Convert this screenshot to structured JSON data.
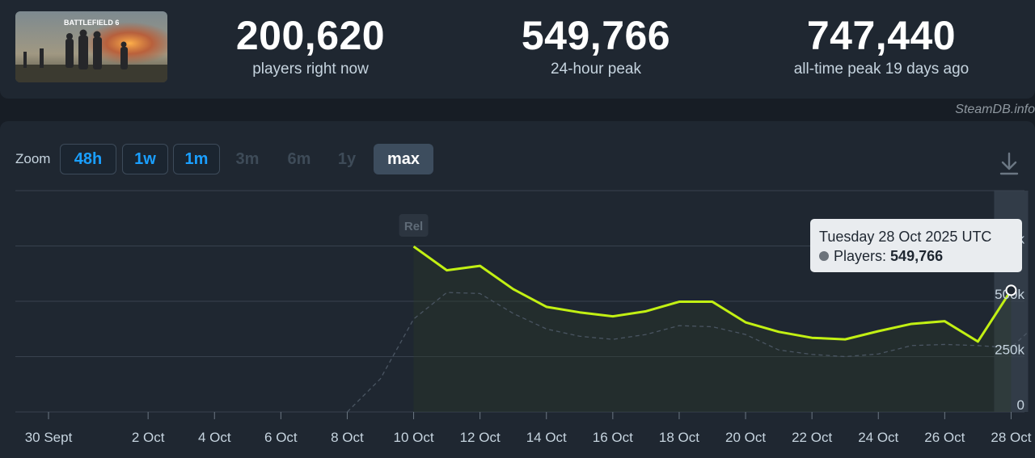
{
  "header": {
    "game_title": "BATTLEFIELD 6",
    "stats": [
      {
        "value": "200,620",
        "label": "players right now"
      },
      {
        "value": "549,766",
        "label": "24-hour peak"
      },
      {
        "value": "747,440",
        "label": "all-time peak 19 days ago"
      }
    ]
  },
  "watermark": "SteamDB.info",
  "zoom": {
    "label": "Zoom",
    "buttons": [
      {
        "label": "48h",
        "state": "active"
      },
      {
        "label": "1w",
        "state": "active"
      },
      {
        "label": "1m",
        "state": "active"
      },
      {
        "label": "3m",
        "state": "disabled"
      },
      {
        "label": "6m",
        "state": "disabled"
      },
      {
        "label": "1y",
        "state": "disabled"
      },
      {
        "label": "max",
        "state": "selected"
      }
    ]
  },
  "tooltip": {
    "date": "Tuesday 28 Oct 2025 UTC",
    "series_label": "Players:",
    "value": "549,766"
  },
  "colors": {
    "line": "#c2f013",
    "secondary": "#4a5562",
    "grid": "#38424e",
    "accent": "#1a9fff",
    "background": "#171d25"
  },
  "chart_data": {
    "type": "line",
    "annotation": "Rel",
    "x_tick_labels": [
      "30 Sept",
      "2 Oct",
      "4 Oct",
      "6 Oct",
      "8 Oct",
      "10 Oct",
      "12 Oct",
      "14 Oct",
      "16 Oct",
      "18 Oct",
      "20 Oct",
      "22 Oct",
      "24 Oct",
      "26 Oct",
      "28 Oct"
    ],
    "y_tick_labels": [
      "0",
      "250k",
      "500k",
      "k"
    ],
    "ylim": [
      0,
      1000000
    ],
    "series": [
      {
        "name": "Players",
        "x": [
          "10 Oct",
          "11 Oct",
          "12 Oct",
          "13 Oct",
          "14 Oct",
          "15 Oct",
          "16 Oct",
          "17 Oct",
          "18 Oct",
          "19 Oct",
          "20 Oct",
          "21 Oct",
          "22 Oct",
          "23 Oct",
          "24 Oct",
          "25 Oct",
          "26 Oct",
          "27 Oct",
          "28 Oct"
        ],
        "values": [
          747440,
          640000,
          660000,
          555000,
          475000,
          450000,
          432000,
          455000,
          498000,
          498000,
          405000,
          362000,
          335000,
          328000,
          365000,
          398000,
          410000,
          318000,
          549766
        ]
      },
      {
        "name": "",
        "x": [
          "8 Oct",
          "9 Oct",
          "10 Oct",
          "11 Oct",
          "12 Oct",
          "13 Oct",
          "14 Oct",
          "15 Oct",
          "16 Oct",
          "17 Oct",
          "18 Oct",
          "19 Oct",
          "20 Oct",
          "21 Oct",
          "22 Oct",
          "23 Oct",
          "24 Oct",
          "25 Oct",
          "26 Oct",
          "27 Oct",
          "28 Oct",
          "28.5 Oct"
        ],
        "values": [
          0,
          150000,
          420000,
          540000,
          535000,
          445000,
          375000,
          342000,
          328000,
          350000,
          390000,
          385000,
          350000,
          280000,
          260000,
          250000,
          262000,
          300000,
          305000,
          300000,
          290000,
          360000
        ]
      }
    ]
  }
}
